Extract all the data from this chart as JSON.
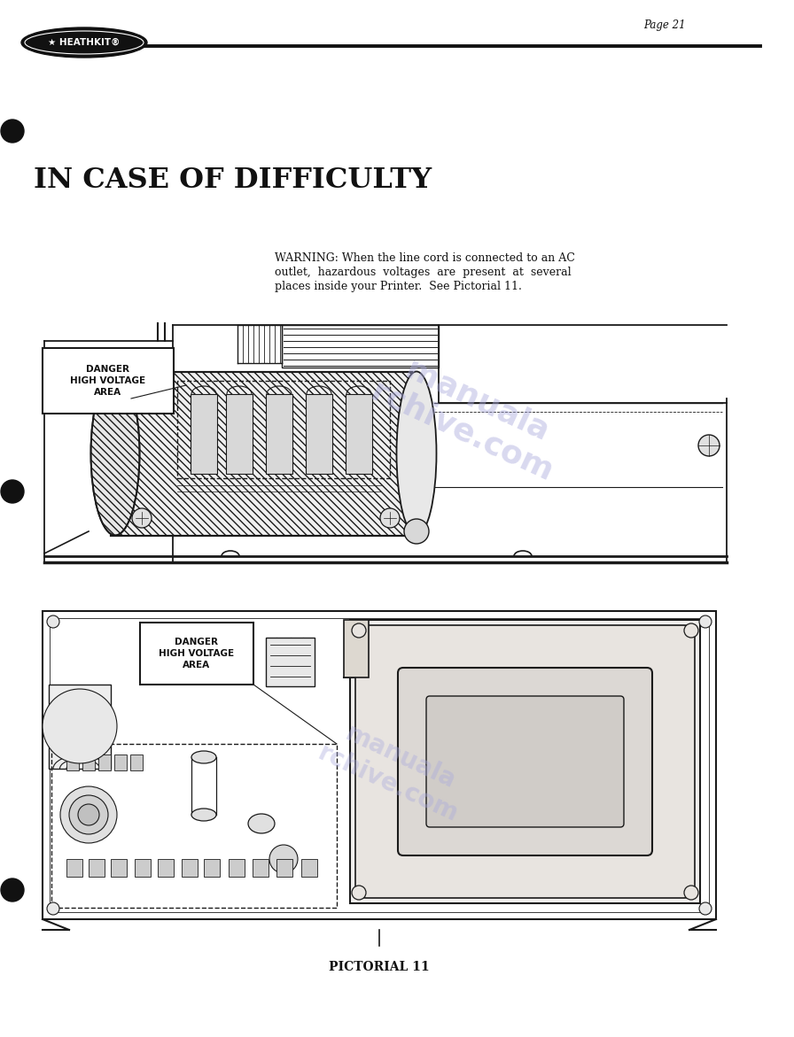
{
  "page_bg": "#ffffff",
  "page_num": "Page 21",
  "title": "IN CASE OF DIFFICULTY",
  "warning_line1": "WARNING: When the line cord is connected to an AC",
  "warning_line2": "outlet,  hazardous  voltages  are  present  at  several",
  "warning_line3": "places inside your Printer.  See Pictorial 11.",
  "danger_label": "DANGER\nHIGH VOLTAGE\nAREA",
  "pictorial_label": "PICTORIAL 11",
  "line_color": "#1a1a1a",
  "text_color": "#111111",
  "watermark_color": "#aaaadd",
  "fig_width": 8.96,
  "fig_height": 11.71
}
